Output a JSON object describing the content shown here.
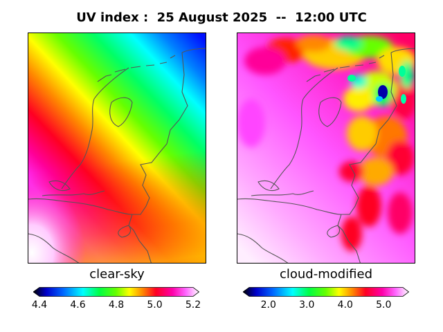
{
  "title": "UV index :  25 August 2025  --  12:00 UTC",
  "panels": [
    {
      "label": "clear-sky",
      "colorbar": {
        "min": 4.4,
        "max": 5.2,
        "ticks": [
          "4.4",
          "4.6",
          "4.8",
          "5.0",
          "5.2"
        ]
      }
    },
    {
      "label": "cloud-modified",
      "colorbar": {
        "min": 1.5,
        "max": 5.5,
        "ticks": [
          "2.0",
          "3.0",
          "4.0",
          "5.0"
        ]
      }
    }
  ],
  "colors": {
    "colormap": [
      "#000000",
      "#0000cc",
      "#0066ff",
      "#00ffff",
      "#00ff66",
      "#33ff00",
      "#ccff00",
      "#ffcc00",
      "#ff6600",
      "#ff0033",
      "#ff0099",
      "#ff33ff",
      "#ffccff",
      "#ffffff"
    ],
    "border_line": "#555555"
  }
}
